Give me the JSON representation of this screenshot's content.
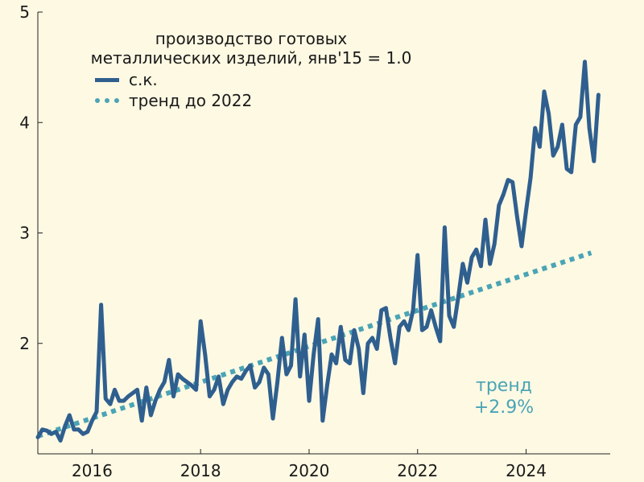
{
  "chart_data": {
    "type": "line",
    "title": "",
    "xlabel": "",
    "ylabel": "",
    "xlim": [
      2015.0,
      2025.55
    ],
    "ylim": [
      1.0,
      5.0
    ],
    "x_ticks": [
      2016,
      2018,
      2020,
      2022,
      2024
    ],
    "y_ticks": [
      2,
      3,
      4,
      5
    ],
    "grid": false,
    "legend": {
      "position": "top-center",
      "title_lines": [
        "производство готовых",
        "металлических изделий, янв'15 = 1.0"
      ]
    },
    "series": [
      {
        "name": "с.к.",
        "color": "#2f5f8f",
        "style": "solid",
        "x_start": 2015.0,
        "x_step": 0.08333,
        "values": [
          1.15,
          1.22,
          1.21,
          1.18,
          1.2,
          1.12,
          1.25,
          1.35,
          1.22,
          1.22,
          1.18,
          1.2,
          1.3,
          1.38,
          2.35,
          1.5,
          1.45,
          1.58,
          1.48,
          1.48,
          1.52,
          1.55,
          1.58,
          1.3,
          1.6,
          1.35,
          1.48,
          1.58,
          1.65,
          1.85,
          1.52,
          1.72,
          1.68,
          1.65,
          1.62,
          1.58,
          2.2,
          1.9,
          1.52,
          1.58,
          1.7,
          1.45,
          1.58,
          1.65,
          1.7,
          1.68,
          1.75,
          1.8,
          1.6,
          1.65,
          1.78,
          1.72,
          1.32,
          1.65,
          2.05,
          1.72,
          1.8,
          2.4,
          1.7,
          2.08,
          1.48,
          1.9,
          2.22,
          1.3,
          1.62,
          1.9,
          1.82,
          2.15,
          1.85,
          1.82,
          2.12,
          1.95,
          1.55,
          2.0,
          2.05,
          1.95,
          2.3,
          2.32,
          2.05,
          1.82,
          2.15,
          2.2,
          2.12,
          2.3,
          2.8,
          2.12,
          2.15,
          2.3,
          2.15,
          2.02,
          3.05,
          2.25,
          2.15,
          2.42,
          2.72,
          2.55,
          2.78,
          2.85,
          2.7,
          3.12,
          2.72,
          2.9,
          3.25,
          3.35,
          3.48,
          3.46,
          3.15,
          2.88,
          3.2,
          3.5,
          3.95,
          3.78,
          4.28,
          4.08,
          3.7,
          3.78,
          3.98,
          3.58,
          3.55,
          3.98,
          4.05,
          4.55,
          3.95,
          3.65,
          4.25
        ]
      },
      {
        "name": "тренд до 2022",
        "color": "#4aa4b5",
        "style": "dotted",
        "x_start": 2015.0,
        "x_end": 2025.2,
        "y_start": 1.16,
        "growth_label": "+2.9%",
        "y_end": 2.82
      }
    ],
    "annotation": {
      "lines": [
        "тренд",
        "+2.9%"
      ]
    }
  }
}
